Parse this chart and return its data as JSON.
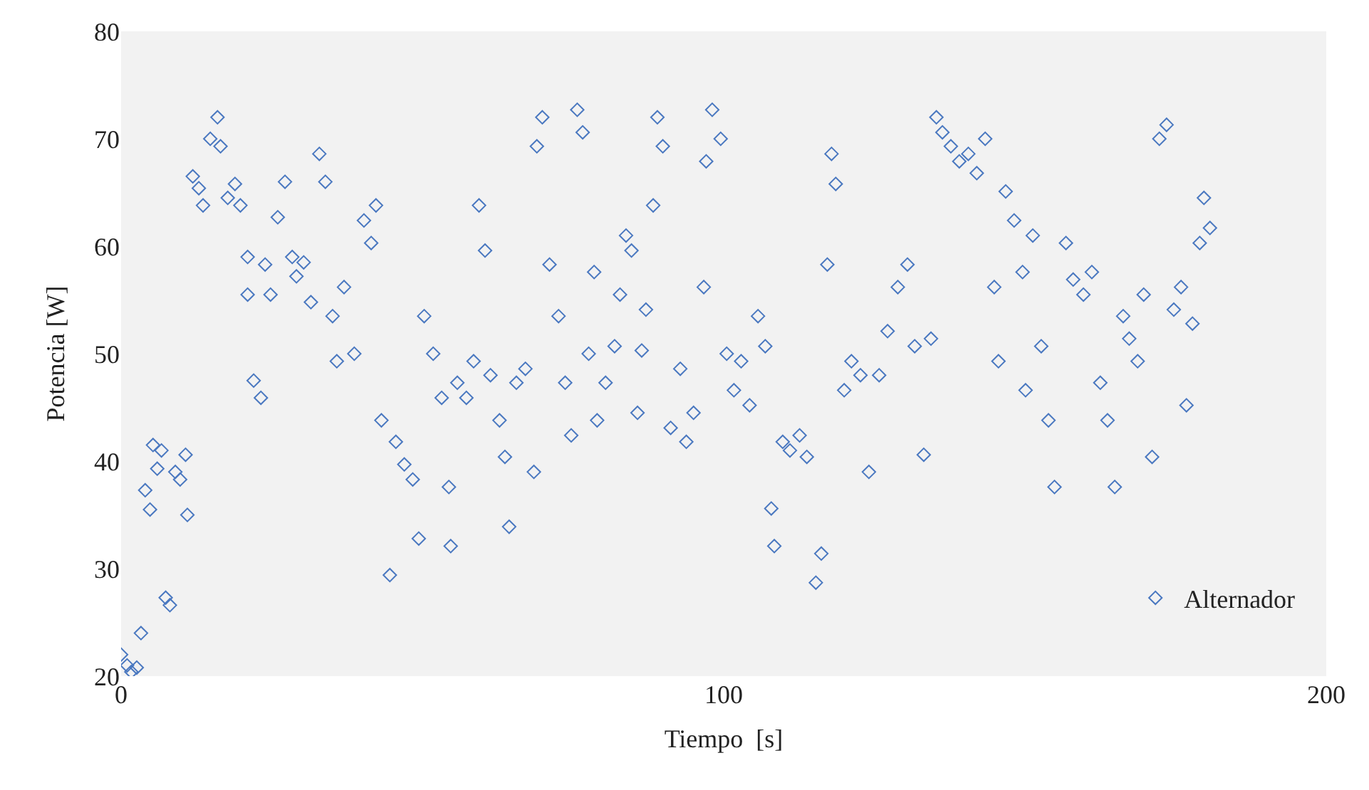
{
  "chart_data": {
    "type": "scatter",
    "xlabel": "Tiempo  [s]",
    "ylabel": "Potencia [W]",
    "xlim": [
      0,
      200
    ],
    "xticks": [
      0,
      100,
      200
    ],
    "ylim": [
      20,
      80
    ],
    "yticks": [
      20,
      30,
      40,
      50,
      60,
      70,
      80
    ],
    "grid": false,
    "legend": "bottom right",
    "marker": "diamond",
    "series": [
      {
        "name": "Alternador",
        "color": "#4a78c0",
        "x": [
          0,
          1,
          1.7,
          2.6,
          3.3,
          4,
          4.8,
          5.3,
          6,
          6.7,
          7.4,
          8.1,
          9,
          9.8,
          10.7,
          11,
          11.9,
          12.9,
          13.6,
          14.8,
          16,
          16.5,
          17.7,
          18.9,
          19.8,
          21,
          21,
          22,
          23.2,
          23.9,
          24.8,
          26,
          27.2,
          28.4,
          29.1,
          30.3,
          31.5,
          32.9,
          33.9,
          35.1,
          35.8,
          37,
          38.7,
          40.3,
          41.5,
          42.3,
          43.2,
          44.6,
          45.6,
          47,
          48.4,
          49.4,
          50.3,
          51.8,
          53.2,
          54.4,
          54.7,
          55.8,
          57.3,
          58.5,
          59.4,
          60.4,
          61.3,
          62.8,
          63.7,
          64.4,
          65.6,
          67.1,
          68.5,
          69,
          69.9,
          71.1,
          72.6,
          73.7,
          74.7,
          75.7,
          76.6,
          77.6,
          78.5,
          79,
          80.4,
          81.9,
          82.8,
          83.8,
          84.7,
          85.7,
          86.4,
          87.1,
          88.3,
          89,
          89.9,
          91.2,
          92.8,
          93.8,
          95,
          96.7,
          97.1,
          98.1,
          99.5,
          100.5,
          101.7,
          102.9,
          104.3,
          105.7,
          106.9,
          107.9,
          108.4,
          109.8,
          111,
          112.6,
          113.8,
          115.3,
          116.2,
          117.2,
          117.9,
          118.6,
          120,
          121.2,
          122.7,
          124.1,
          125.8,
          127.2,
          128.9,
          130.5,
          131.7,
          133.2,
          134.4,
          135.3,
          136.3,
          137.7,
          139.1,
          140.6,
          142,
          143.4,
          144.9,
          145.6,
          146.8,
          148.2,
          149.6,
          150.1,
          151.3,
          152.7,
          153.9,
          154.9,
          156.8,
          158,
          159.7,
          161.1,
          162.5,
          163.7,
          164.9,
          166.3,
          167.3,
          168.7,
          169.7,
          171.1,
          172.3,
          173.5,
          174.7,
          175.9,
          176.8,
          177.8,
          179,
          179.7,
          180.7
        ],
        "values": [
          22,
          21,
          20.4,
          20.8,
          24,
          37.3,
          35.5,
          41.5,
          39.3,
          41,
          27.3,
          26.6,
          39,
          38.3,
          40.6,
          35,
          66.5,
          65.4,
          63.8,
          70,
          72,
          69.3,
          64.5,
          65.8,
          63.8,
          59,
          55.5,
          47.5,
          45.9,
          58.3,
          55.5,
          62.7,
          66,
          59,
          57.2,
          58.5,
          54.8,
          68.6,
          66,
          53.5,
          49.3,
          56.2,
          50,
          62.4,
          60.3,
          63.8,
          43.8,
          29.4,
          41.8,
          39.7,
          38.3,
          32.8,
          53.5,
          50,
          45.9,
          37.6,
          32.1,
          47.3,
          45.9,
          49.3,
          63.8,
          59.6,
          48,
          43.8,
          40.4,
          33.9,
          47.3,
          48.6,
          39,
          69.3,
          72,
          58.3,
          53.5,
          47.3,
          42.4,
          72.7,
          70.6,
          50,
          57.6,
          43.8,
          47.3,
          50.7,
          55.5,
          61,
          59.6,
          44.5,
          50.3,
          54.1,
          63.8,
          72,
          69.3,
          43.1,
          48.6,
          41.8,
          44.5,
          56.2,
          67.9,
          72.7,
          70,
          50,
          46.6,
          49.3,
          45.2,
          53.5,
          50.7,
          35.6,
          32.1,
          41.8,
          41,
          42.4,
          40.4,
          28.7,
          31.4,
          58.3,
          68.6,
          65.8,
          46.6,
          49.3,
          48,
          39,
          48,
          52.1,
          56.2,
          58.3,
          50.7,
          40.6,
          51.4,
          72,
          70.6,
          69.3,
          67.9,
          68.6,
          66.8,
          70,
          56.2,
          49.3,
          65.1,
          62.4,
          57.6,
          46.6,
          61,
          50.7,
          43.8,
          37.6,
          60.3,
          56.9,
          55.5,
          57.6,
          47.3,
          43.8,
          37.6,
          53.5,
          51.4,
          49.3,
          55.5,
          40.4,
          70,
          71.3,
          54.1,
          56.2,
          45.2,
          52.8,
          60.3,
          64.5,
          61.7
        ]
      }
    ]
  }
}
